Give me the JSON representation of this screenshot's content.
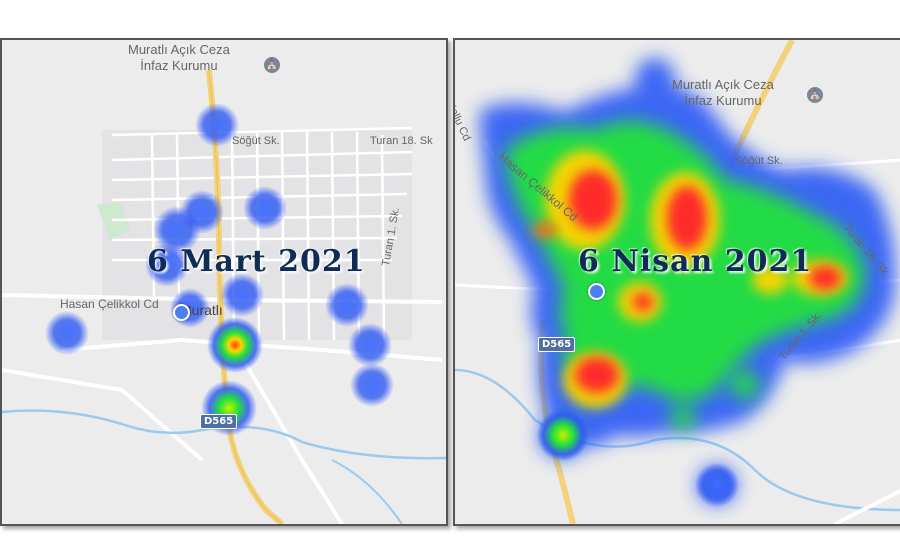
{
  "left_map": {
    "title": "6 Mart 2021",
    "poi_name_line1": "Muratlı Açık Ceza",
    "poi_name_line2": "İnfaz Kurumu",
    "poi_icon": "government-building-icon",
    "street_sogut": "Söğüt Sk.",
    "street_turan18": "Turan 18. Sk",
    "street_turan1": "Turan 1. Sk.",
    "street_hasan": "Hasan Çelikkol Cd",
    "town": "Muratlı",
    "route_badge": "D565"
  },
  "right_map": {
    "title": "6 Nisan 2021",
    "poi_name_line1": "Muratlı Açık Ceza",
    "poi_name_line2": "İnfaz Kurumu",
    "poi_icon": "government-building-icon",
    "street_sogut": "Söğüt Sk.",
    "street_turan18": "Turan 18. Sk.",
    "street_turan1": "Turan 1. Sk.",
    "street_hasan": "Hasan Çelikkol Cd",
    "street_kollu": "Kollu Cd",
    "route_badge": "D565"
  },
  "colors": {
    "heat_low": "#2a5cff",
    "heat_mid": "#22e23a",
    "heat_high": "#ffd400",
    "heat_peak": "#ff2a2a",
    "road_major": "#f2d27a",
    "water": "#9cc9ee",
    "title": "#0f2c57"
  }
}
